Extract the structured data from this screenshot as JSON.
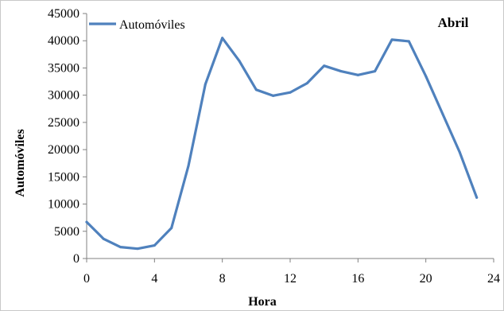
{
  "chart_data": {
    "type": "line",
    "panel_label": "Abril",
    "xlabel": "Hora",
    "ylabel": "Automóviles",
    "xlim": [
      0,
      24
    ],
    "ylim": [
      0,
      45000
    ],
    "xticks": [
      0,
      4,
      8,
      12,
      16,
      20,
      24
    ],
    "yticks": [
      0,
      5000,
      10000,
      15000,
      20000,
      25000,
      30000,
      35000,
      40000,
      45000
    ],
    "grid": false,
    "legend_position": "top-left",
    "series": [
      {
        "name": "Automóviles",
        "color": "#4f81bd",
        "x": [
          0,
          1,
          2,
          3,
          4,
          5,
          6,
          7,
          8,
          9,
          10,
          11,
          12,
          13,
          14,
          15,
          16,
          17,
          18,
          19,
          20,
          21,
          22,
          23
        ],
        "y": [
          6700,
          3600,
          2100,
          1800,
          2400,
          5600,
          17000,
          32000,
          40500,
          36300,
          31000,
          29900,
          30500,
          32200,
          35400,
          34400,
          33700,
          34400,
          40200,
          39900,
          33500,
          26500,
          19500,
          11200
        ]
      }
    ]
  }
}
